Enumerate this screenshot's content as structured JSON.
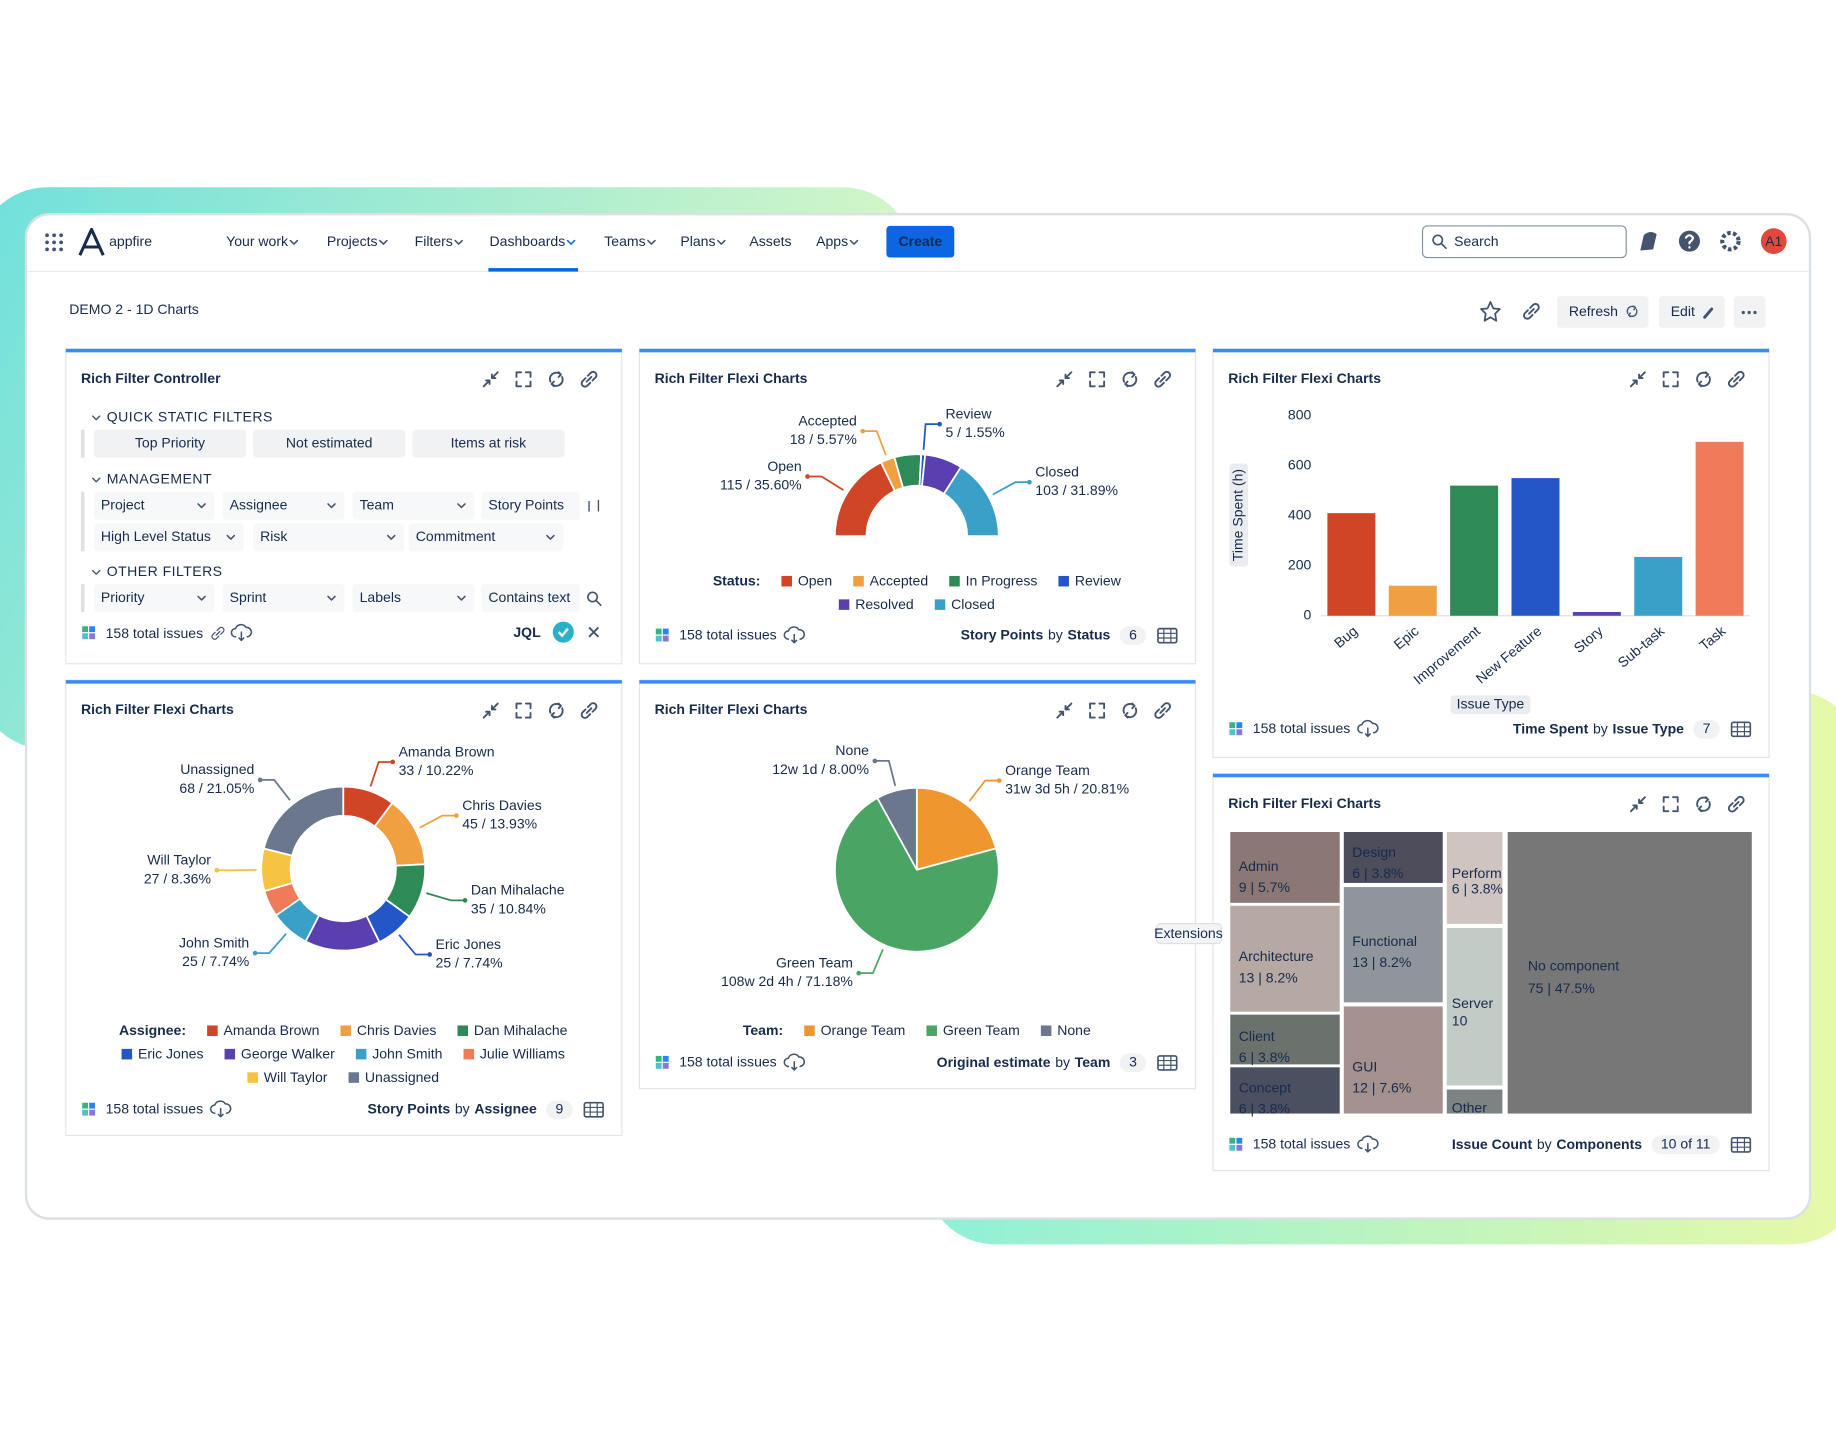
{
  "nav": {
    "brand": "appfire",
    "items": [
      "Your work",
      "Projects",
      "Filters",
      "Dashboards",
      "Teams",
      "Plans",
      "Assets",
      "Apps"
    ],
    "active_item": 3,
    "create": "Create",
    "search": "Search",
    "avatar": "A1"
  },
  "header": {
    "title": "DEMO 2 - 1D Charts",
    "refresh": "Refresh",
    "edit": "Edit"
  },
  "controller": {
    "title": "Rich Filter Controller",
    "sections": [
      {
        "name": "QUICK STATIC FILTERS",
        "filters": [
          "Top Priority",
          "Not estimated",
          "Items at risk"
        ]
      },
      {
        "name": "MANAGEMENT",
        "filters": [
          "Project",
          "Assignee",
          "Team",
          "Story Points",
          "High Level Status",
          "Risk",
          "Commitment"
        ]
      },
      {
        "name": "OTHER FILTERS",
        "filters": [
          "Priority",
          "Sprint",
          "Labels",
          "Contains text"
        ]
      }
    ],
    "total": "158 total issues",
    "jql": "JQL"
  },
  "gadgets": [
    {
      "title": "Rich Filter Flexi Charts",
      "total": "158 total issues",
      "footer": {
        "metric": "Story Points",
        "by": "by",
        "group": "Status",
        "count": "6"
      },
      "chart": {
        "type": "semi-donut",
        "legend_title": "Status:",
        "categories": [
          "Open",
          "Accepted",
          "In Progress",
          "Review",
          "Resolved",
          "Closed"
        ],
        "values": [
          115,
          18,
          34,
          5,
          48,
          103
        ],
        "value_labels": [
          "115 / 35.60%",
          "18 / 5.57%",
          null,
          "5 / 1.55%",
          null,
          "103 / 31.89%"
        ],
        "colors": [
          "#d04525",
          "#f0a040",
          "#2e8a57",
          "#2456c8",
          "#5a3fb0",
          "#3aa0c8"
        ]
      }
    },
    {
      "title": "Rich Filter Flexi Charts",
      "total": "158 total issues",
      "footer": {
        "metric": "Time Spent",
        "by": "by",
        "group": "Issue Type",
        "count": "7"
      },
      "chart": {
        "type": "bar",
        "y_label": "Time Spent (h)",
        "x_label": "Issue Type",
        "categories": [
          "Bug",
          "Epic",
          "Improvement",
          "New Feature",
          "Story",
          "Sub-task",
          "Task"
        ],
        "values": [
          410,
          120,
          520,
          550,
          15,
          235,
          695
        ],
        "colors": [
          "#d04525",
          "#f0a040",
          "#2e8a57",
          "#2456c8",
          "#5a3fb0",
          "#3aa0c8",
          "#f07a5a"
        ],
        "ylim": [
          0,
          800
        ],
        "yticks": [
          0,
          200,
          400,
          600,
          800
        ],
        "grid": false
      }
    },
    {
      "title": "Rich Filter Flexi Charts",
      "total": "158 total issues",
      "footer": {
        "metric": "Story Points",
        "by": "by",
        "group": "Assignee",
        "count": "9"
      },
      "chart": {
        "type": "donut",
        "legend_title": "Assignee:",
        "categories": [
          "Amanda Brown",
          "Chris Davies",
          "Dan Mihalache",
          "Eric Jones",
          "George Walker",
          "John Smith",
          "Julie Williams",
          "Will Taylor",
          "Unassigned"
        ],
        "values": [
          33,
          45,
          35,
          25,
          48,
          25,
          17,
          27,
          68
        ],
        "value_labels": [
          "33 / 10.22%",
          "45 / 13.93%",
          "35 / 10.84%",
          "25 / 7.74%",
          null,
          "25 / 7.74%",
          null,
          "27 / 8.36%",
          "68 / 21.05%"
        ],
        "colors": [
          "#d04525",
          "#f0a040",
          "#2e8a57",
          "#2456c8",
          "#5a3fb0",
          "#3aa0c8",
          "#f07a5a",
          "#f5c242",
          "#6b778c"
        ]
      }
    },
    {
      "title": "Rich Filter Flexi Charts",
      "total": "158 total issues",
      "footer": {
        "metric": "Original estimate",
        "by": "by",
        "group": "Team",
        "count": "3"
      },
      "chart": {
        "type": "pie",
        "legend_title": "Team:",
        "categories": [
          "Orange Team",
          "Green Team",
          "None"
        ],
        "values": [
          20.81,
          71.18,
          8
        ],
        "value_labels": [
          "31w 3d 5h / 20.81%",
          "108w 2d 4h / 71.18%",
          "12w 1d / 8.00%"
        ],
        "colors": [
          "#f0962f",
          "#4aa564",
          "#6b778c"
        ]
      }
    },
    {
      "title": "Rich Filter Flexi Charts",
      "total": "158 total issues",
      "footer": {
        "metric": "Issue Count",
        "by": "by",
        "group": "Components",
        "count": "10 of 11"
      },
      "chart": {
        "type": "treemap",
        "categories": [
          "Admin",
          "Architecture",
          "Client",
          "Concept",
          "Design",
          "Functional",
          "GUI",
          "Perform",
          "Server",
          "Other",
          "No component"
        ],
        "values": [
          9,
          13,
          6,
          6,
          6,
          13,
          12,
          6,
          10,
          2,
          75
        ],
        "value_labels": [
          "9 | 5.7%",
          "13 | 8.2%",
          "6 | 3.8%",
          "6 | 3.8%",
          "6 | 3.8%",
          "13 | 8.2%",
          "12 | 7.6%",
          "6 | 3.8%",
          "10",
          null,
          "75 | 47.5%"
        ],
        "colors": [
          "#8b7773",
          "#b6a8a3",
          "#6b716c",
          "#4b5060",
          "#4d4d5c",
          "#8f959a",
          "#a4918d",
          "#cfc4c0",
          "#c3cbc7",
          "#7d8282",
          "#777777"
        ]
      }
    }
  ],
  "extensions_tab": "Extensions"
}
